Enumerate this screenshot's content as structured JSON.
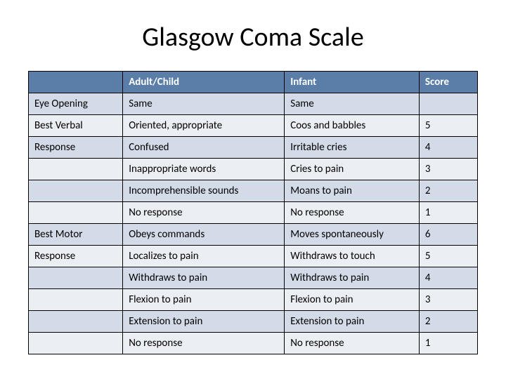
{
  "title": "Glasgow Coma Scale",
  "columns": [
    "",
    "Adult/Child",
    "Infant",
    "Score"
  ],
  "rows": [
    [
      "Eye Opening",
      "Same",
      "Same",
      ""
    ],
    [
      "Best Verbal",
      "Oriented, appropriate",
      "Coos and babbles",
      "5"
    ],
    [
      "Response",
      "Confused",
      "Irritable cries",
      "4"
    ],
    [
      "",
      "Inappropriate words",
      "Cries to pain",
      "3"
    ],
    [
      "",
      "Incomprehensible sounds",
      "Moans to pain",
      "2"
    ],
    [
      "",
      "No response",
      "No response",
      "1"
    ],
    [
      "Best Motor",
      "Obeys commands",
      "Moves spontaneously",
      "6"
    ],
    [
      "Response",
      "Localizes to pain",
      "Withdraws to touch",
      "5"
    ],
    [
      "",
      "Withdraws to pain",
      "Withdraws to pain",
      "4"
    ],
    [
      "",
      "Flexion to pain",
      "Flexion to pain",
      "3"
    ],
    [
      "",
      "Extension to pain",
      "Extension to pain",
      "2"
    ],
    [
      "",
      "No response",
      "No response",
      "1"
    ]
  ],
  "colors": {
    "header_bg": "#5b7ea8",
    "header_text": "#ffffff",
    "alt_row_bg": "#d3dbe8",
    "norm_row_bg": "#ebeff4",
    "border": "#000000",
    "text": "#000000"
  },
  "fonts": {
    "title_size": 38,
    "cell_size": 15
  }
}
